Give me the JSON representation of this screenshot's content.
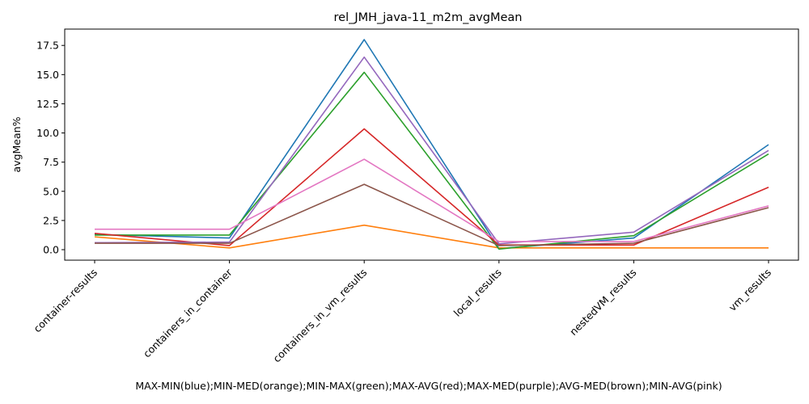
{
  "chart_data": {
    "type": "line",
    "title": "rel_JMH_java-11_m2m_avgMean",
    "xlabel": "MAX-MIN(blue);MIN-MED(orange);MIN-MAX(green);MAX-AVG(red);MAX-MED(purple);AVG-MED(brown);MIN-AVG(pink)",
    "ylabel": "avgMean%",
    "categories": [
      "container-results",
      "containers_in_container",
      "containers_in_vm_results",
      "local_results",
      "nestedVM_results",
      "vm_results"
    ],
    "ylim": [
      -0.9,
      18.9
    ],
    "yticks": [
      "0.0",
      "2.5",
      "5.0",
      "7.5",
      "10.0",
      "12.5",
      "15.0",
      "17.5"
    ],
    "ytick_values": [
      0,
      2.5,
      5.0,
      7.5,
      10.0,
      12.5,
      15.0,
      17.5
    ],
    "grid": false,
    "series": [
      {
        "color": "#1f77b4",
        "values": [
          1.3,
          1.0,
          18.0,
          0.1,
          1.0,
          9.0
        ]
      },
      {
        "color": "#ff7f0e",
        "values": [
          1.1,
          0.15,
          2.1,
          0.15,
          0.15,
          0.15
        ]
      },
      {
        "color": "#2ca02c",
        "values": [
          1.25,
          1.25,
          15.2,
          0.05,
          1.2,
          8.2
        ]
      },
      {
        "color": "#d62728",
        "values": [
          1.4,
          0.35,
          10.35,
          0.4,
          0.4,
          5.35
        ]
      },
      {
        "color": "#9467bd",
        "values": [
          0.6,
          0.65,
          16.5,
          0.5,
          1.5,
          8.5
        ]
      },
      {
        "color": "#8c564b",
        "values": [
          0.55,
          0.55,
          5.6,
          0.35,
          0.55,
          3.6
        ]
      },
      {
        "color": "#e377c2",
        "values": [
          1.75,
          1.75,
          7.75,
          0.7,
          0.7,
          3.75
        ]
      }
    ]
  }
}
